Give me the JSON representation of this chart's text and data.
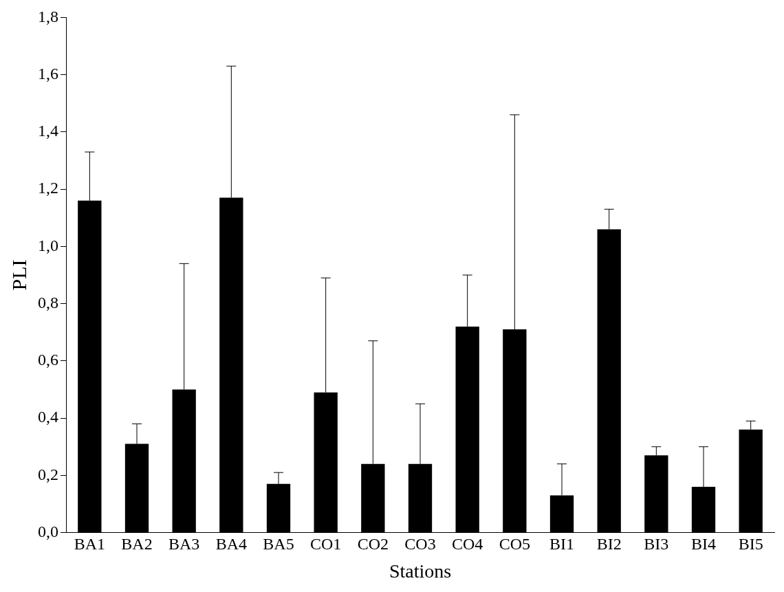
{
  "chart_data": {
    "type": "bar",
    "xlabel": "Stations",
    "ylabel": "PLI",
    "categories": [
      "BA1",
      "BA2",
      "BA3",
      "BA4",
      "BA5",
      "CO1",
      "CO2",
      "CO3",
      "CO4",
      "CO5",
      "BI1",
      "BI2",
      "BI3",
      "BI4",
      "BI5"
    ],
    "values": [
      1.16,
      0.31,
      0.5,
      1.17,
      0.17,
      0.49,
      0.24,
      0.24,
      0.72,
      0.71,
      0.13,
      1.06,
      0.27,
      0.16,
      0.36
    ],
    "errors": [
      [
        1.16,
        1.33
      ],
      [
        0.31,
        0.38
      ],
      [
        0.5,
        0.94
      ],
      [
        1.17,
        1.63
      ],
      [
        0.17,
        0.21
      ],
      [
        0.49,
        0.89
      ],
      [
        0.24,
        0.67
      ],
      [
        0.24,
        0.45
      ],
      [
        0.72,
        0.9
      ],
      [
        0.71,
        1.46
      ],
      [
        0.13,
        0.24
      ],
      [
        1.06,
        1.13
      ],
      [
        0.27,
        0.3
      ],
      [
        0.16,
        0.3
      ],
      [
        0.36,
        0.39
      ]
    ],
    "color": "#000000",
    "ylim": [
      0,
      1.8
    ],
    "yticks": [
      {
        "value": 0,
        "label": "0,0"
      },
      {
        "value": 0.2,
        "label": "0,2"
      },
      {
        "value": 0.4,
        "label": "0,4"
      },
      {
        "value": 0.6,
        "label": "0,6"
      },
      {
        "value": 0.8,
        "label": "0,8"
      },
      {
        "value": 1,
        "label": "1,0"
      },
      {
        "value": 1.2,
        "label": "1,2"
      },
      {
        "value": 1.4,
        "label": "1,4"
      },
      {
        "value": 1.6,
        "label": "1,6"
      },
      {
        "value": 1.8,
        "label": "1,8"
      }
    ],
    "grid": false,
    "legend": false
  }
}
